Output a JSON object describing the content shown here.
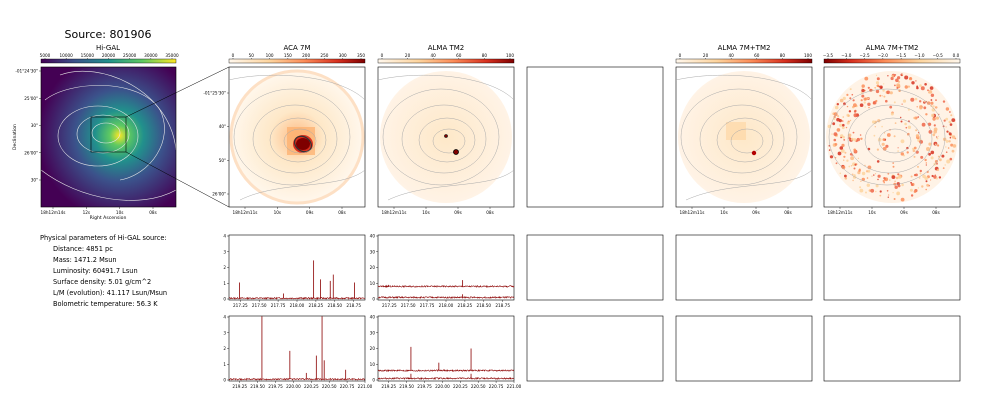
{
  "figure": {
    "title": "Source: 801906",
    "panel_titles": {
      "higal": "Hi-GAL",
      "aca": "ACA 7M",
      "tm2": "ALMA TM2",
      "combo1": "ALMA 7M+TM2",
      "combo2": "ALMA 7M+TM2"
    }
  },
  "colorbars": {
    "higal": {
      "ticks": [
        "5000",
        "10000",
        "15000",
        "20000",
        "25000",
        "30000",
        "35000"
      ],
      "colors": [
        "#440154",
        "#3b528b",
        "#21918c",
        "#5ec962",
        "#fde725"
      ]
    },
    "aca": {
      "ticks": [
        "0",
        "50",
        "100",
        "150",
        "200",
        "250",
        "300",
        "350"
      ],
      "colors": [
        "#fff7ec",
        "#fdd49e",
        "#fc8d59",
        "#d7301f",
        "#7f0000"
      ]
    },
    "tm2": {
      "ticks": [
        "0",
        "20",
        "40",
        "60",
        "80",
        "100"
      ],
      "colors": [
        "#fff7ec",
        "#fdd49e",
        "#fc8d59",
        "#d7301f",
        "#7f0000"
      ]
    },
    "combo1": {
      "ticks": [
        "0",
        "20",
        "40",
        "60",
        "80",
        "100"
      ],
      "colors": [
        "#fff7ec",
        "#fdd49e",
        "#fc8d59",
        "#d7301f",
        "#7f0000"
      ]
    },
    "combo2": {
      "ticks": [
        "−3.5",
        "−3.0",
        "−2.5",
        "−2.0",
        "−1.5",
        "−1.0",
        "−0.5",
        "0.0"
      ],
      "colors": [
        "#7f0000",
        "#d7301f",
        "#fc8d59",
        "#fdd49e",
        "#fff7ec"
      ]
    }
  },
  "axes": {
    "higal": {
      "yticks": [
        "-01°24'30\"",
        "25'00\"",
        "30\"",
        "26'00\"",
        "30\""
      ],
      "xticks": [
        "18h12m14s",
        "12s",
        "10s",
        "08s"
      ],
      "xlabel": "Right Ascension",
      "ylabel": "Declination"
    },
    "aca": {
      "yticks": [
        "-01°25'30\"",
        "40\"",
        "50\"",
        "26'00\""
      ],
      "xticks": [
        "18h12m11s",
        "10s",
        "09s",
        "08s"
      ]
    },
    "tm2": {
      "xticks": [
        "18h12m11s",
        "10s",
        "09s",
        "08s"
      ]
    },
    "combo1": {
      "xticks": [
        "18h12m11s",
        "10s",
        "09s",
        "08s"
      ]
    },
    "combo2": {
      "xticks": [
        "18h12m11s",
        "10s",
        "09s",
        "08s"
      ]
    }
  },
  "info": {
    "heading": "Physical parameters of Hi-GAL source:",
    "lines": [
      "Distance: 4851 pc",
      "Mass: 1471.2 Msun",
      "Luminosity: 60491.7 Lsun",
      "Surface density: 5.01 g/cm^2",
      "L/M (evolution): 41.117 Lsun/Msun",
      "Bolometric temperature: 56.3 K"
    ]
  },
  "chart_data": [
    {
      "type": "line",
      "panel": "aca-spectrum-1",
      "x_range": [
        217.1,
        218.9
      ],
      "xticks": [
        "217.25",
        "217.50",
        "217.75",
        "218.00",
        "218.25",
        "218.50",
        "218.75"
      ],
      "xtick_values": [
        217.25,
        217.5,
        217.75,
        218.0,
        218.25,
        218.5,
        218.75
      ],
      "ylim": [
        0,
        4
      ],
      "yticks": [
        "0",
        "1",
        "2",
        "3",
        "4"
      ],
      "series": [
        {
          "baseline": 0.05,
          "peaks": [
            [
              217.24,
              1.0
            ],
            [
              217.82,
              0.3
            ],
            [
              218.22,
              2.4
            ],
            [
              218.31,
              1.2
            ],
            [
              218.44,
              1.1
            ],
            [
              218.48,
              1.5
            ],
            [
              218.76,
              1.0
            ]
          ],
          "color": "#8b0000"
        }
      ]
    },
    {
      "type": "line",
      "panel": "tm2-spectrum-1",
      "x_range": [
        217.1,
        218.9
      ],
      "xticks": [
        "217.25",
        "217.50",
        "217.75",
        "218.00",
        "218.25",
        "218.50",
        "218.75"
      ],
      "xtick_values": [
        217.25,
        217.5,
        217.75,
        218.0,
        218.25,
        218.5,
        218.75
      ],
      "ylim": [
        0,
        40
      ],
      "yticks": [
        "0",
        "10",
        "20",
        "30",
        "40"
      ],
      "series": [
        {
          "baseline": 8,
          "peaks": [
            [
              218.22,
              4
            ],
            [
              217.24,
              1
            ]
          ],
          "color": "#8b0000"
        },
        {
          "baseline": 1,
          "peaks": [
            [
              218.22,
              2
            ]
          ],
          "color": "#8b0000"
        }
      ]
    },
    {
      "type": "line",
      "panel": "aca-spectrum-2",
      "x_range": [
        219.1,
        221.0
      ],
      "xticks": [
        "219.25",
        "219.50",
        "219.75",
        "220.00",
        "220.25",
        "220.50",
        "220.75",
        "221.00"
      ],
      "xtick_values": [
        219.25,
        219.5,
        219.75,
        220.0,
        220.25,
        220.5,
        220.75,
        221.0
      ],
      "ylim": [
        0,
        4
      ],
      "yticks": [
        "0",
        "1",
        "2",
        "3",
        "4"
      ],
      "series": [
        {
          "baseline": 0.05,
          "peaks": [
            [
              219.56,
              4.0
            ],
            [
              219.95,
              1.8
            ],
            [
              220.32,
              1.5
            ],
            [
              220.4,
              4.0
            ],
            [
              220.43,
              1.2
            ],
            [
              220.73,
              0.6
            ],
            [
              220.18,
              0.4
            ]
          ],
          "color": "#8b0000"
        }
      ]
    },
    {
      "type": "line",
      "panel": "tm2-spectrum-2",
      "x_range": [
        219.1,
        221.0
      ],
      "xticks": [
        "219.25",
        "219.50",
        "219.75",
        "220.00",
        "220.25",
        "220.50",
        "220.75",
        "221.00"
      ],
      "xtick_values": [
        219.25,
        219.5,
        219.75,
        220.0,
        220.25,
        220.5,
        220.75,
        221.0
      ],
      "ylim": [
        0,
        40
      ],
      "yticks": [
        "0",
        "10",
        "20",
        "30",
        "40"
      ],
      "series": [
        {
          "baseline": 6,
          "peaks": [
            [
              219.56,
              15
            ],
            [
              219.95,
              5
            ],
            [
              220.4,
              14
            ]
          ],
          "color": "#8b0000"
        },
        {
          "baseline": 1,
          "peaks": [
            [
              219.56,
              3
            ],
            [
              220.4,
              3
            ]
          ],
          "color": "#8b0000"
        }
      ]
    }
  ]
}
